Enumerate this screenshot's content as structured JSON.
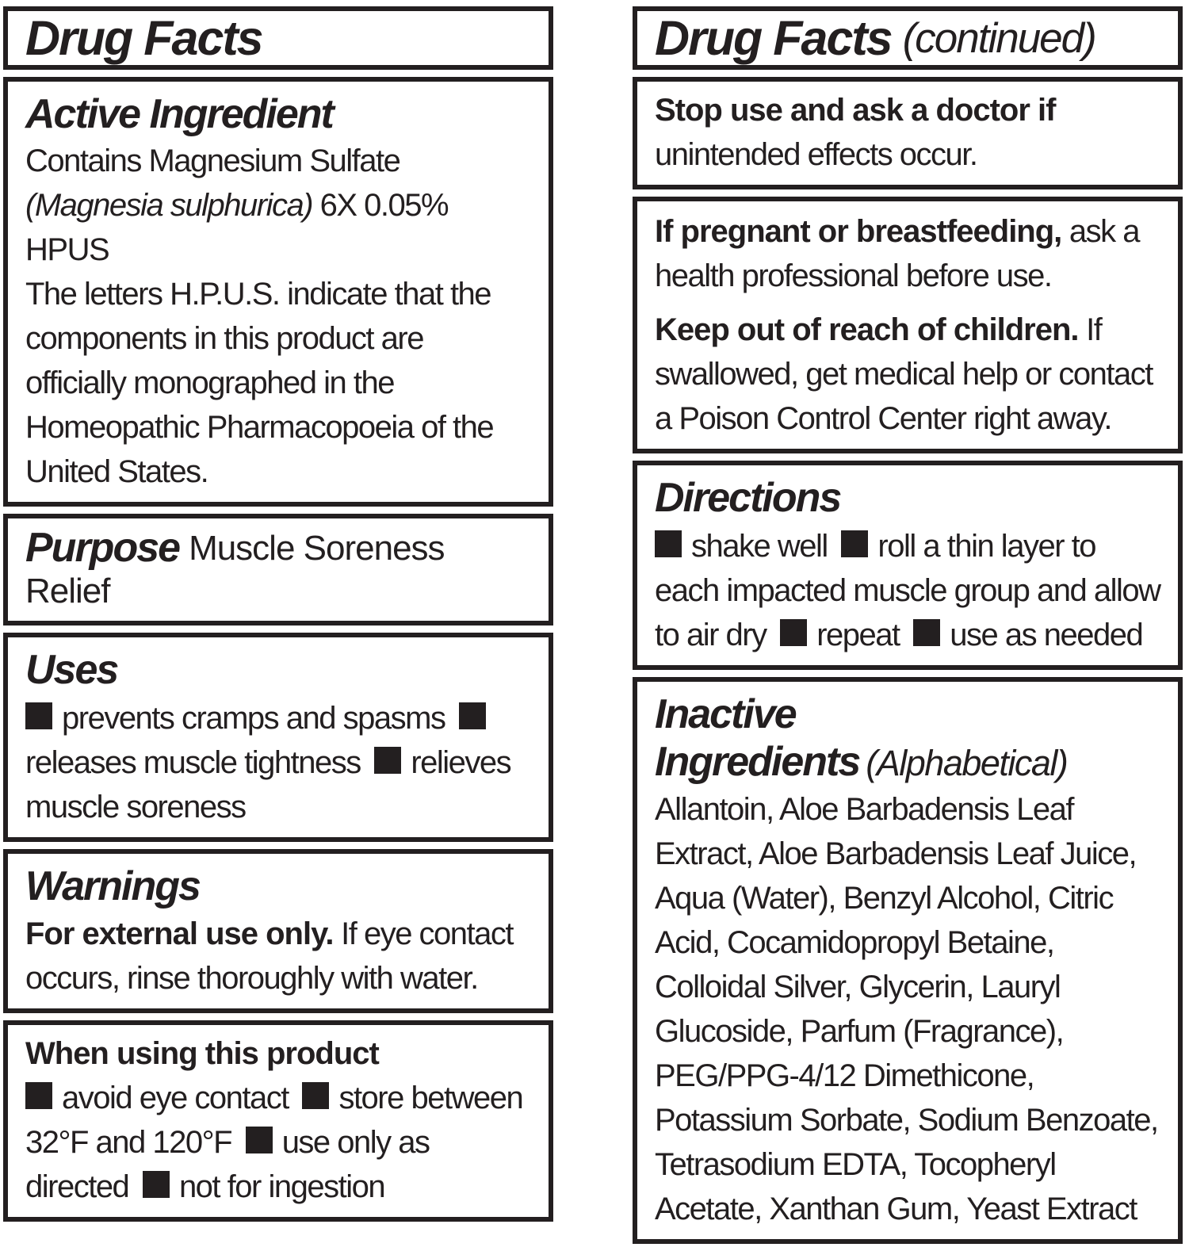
{
  "label": {
    "ink_color": "#231f20",
    "background_color": "#ffffff",
    "icons": {
      "bullet": "black-square-bullet"
    }
  },
  "left": {
    "title": "Drug Facts",
    "active": {
      "heading": "Active Ingredient",
      "line1": "Contains Magnesium Sulfate",
      "latin_italic": "(Magnesia sulphurica)",
      "line2_rest": " 6X 0.05% HPUS",
      "body": "The letters H.P.U.S. indicate that the components in this product are officially monographed in the Homeopathic Pharmacopoeia of the United States."
    },
    "purpose": {
      "heading": "Purpose",
      "text": "Muscle Soreness Relief"
    },
    "uses": {
      "heading": "Uses",
      "items": [
        "prevents cramps and spasms",
        "releases muscle tightness",
        "relieves muscle soreness"
      ]
    },
    "warnings": {
      "heading": "Warnings",
      "bold_lead": "For external use only.",
      "text": " If eye contact occurs, rinse thoroughly with water."
    },
    "when_using": {
      "heading": "When using this product",
      "items": [
        "avoid eye contact",
        "store between 32°F and 120°F",
        "use only as directed",
        "not for ingestion"
      ]
    }
  },
  "right": {
    "title": "Drug Facts",
    "title_suffix": "(continued)",
    "stop_use": {
      "bold_lead": "Stop use and ask a doctor if",
      "text": " unintended effects occur."
    },
    "pregnancy": {
      "bold_lead": "If pregnant or breastfeeding,",
      "text": " ask a health professional before use."
    },
    "keep_out": {
      "bold_lead": "Keep out of reach of children.",
      "text": " If swallowed, get medical help or contact a Poison Control Center right away."
    },
    "directions": {
      "heading": "Directions",
      "items": [
        "shake well",
        "roll a thin layer to each impacted muscle group and allow to air dry",
        "repeat",
        "use as needed"
      ]
    },
    "inactive": {
      "heading": "Inactive Ingredients",
      "heading_suffix": "(Alphabetical)",
      "body": "Allantoin, Aloe Barbadensis Leaf Extract, Aloe Barbadensis Leaf Juice, Aqua (Water), Benzyl Alcohol, Citric Acid, Cocamidopropyl Betaine, Colloidal Silver, Glycerin, Lauryl Glucoside, Parfum (Fragrance), PEG/PPG-4/12 Dimethicone, Potassium Sorbate, Sodium Benzoate, Tetrasodium EDTA, Tocopheryl Acetate, Xanthan Gum, Yeast Extract"
    }
  }
}
